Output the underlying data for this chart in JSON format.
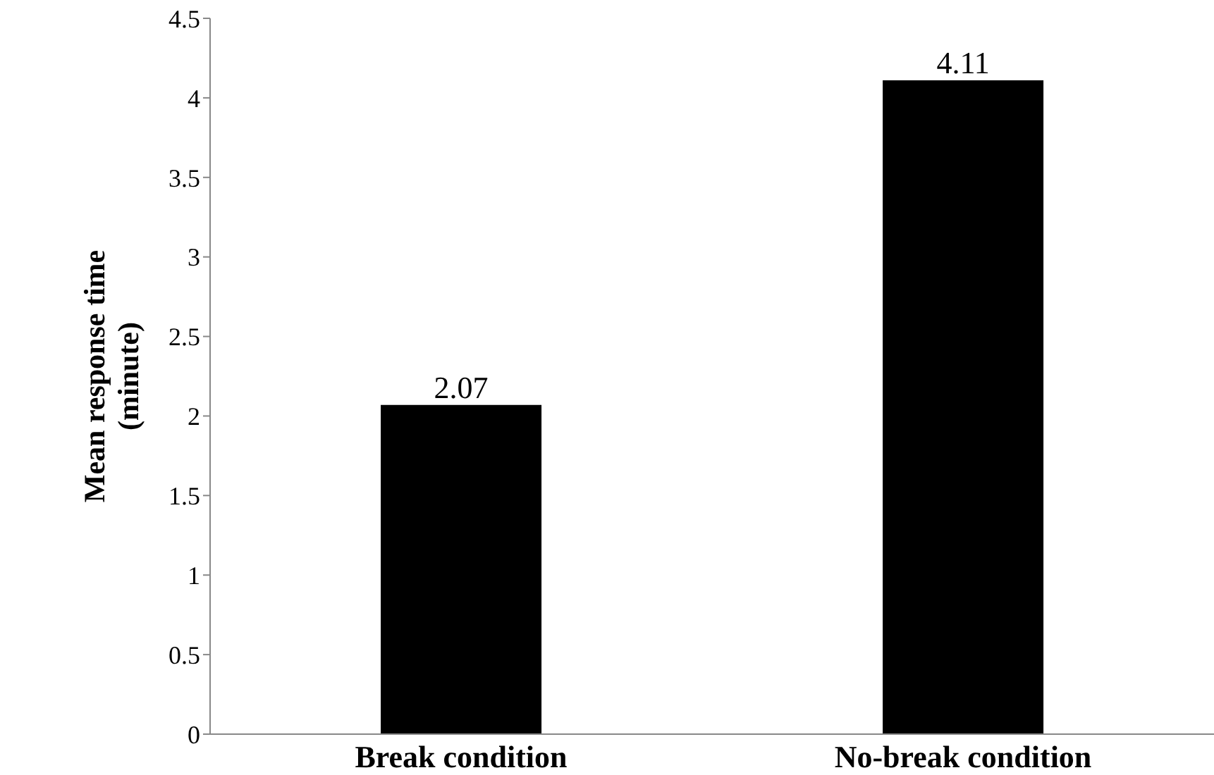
{
  "chart_data": {
    "type": "bar",
    "ylabel": "Mean response time (minute)",
    "categories": [
      "Break condition",
      "No-break condition"
    ],
    "values": [
      2.07,
      4.11
    ],
    "color": "#000000",
    "ylim": [
      0,
      4.5
    ],
    "yticks": [
      0,
      0.5,
      1,
      1.5,
      2,
      2.5,
      3,
      3.5,
      4,
      4.5
    ],
    "data_labels": true
  }
}
